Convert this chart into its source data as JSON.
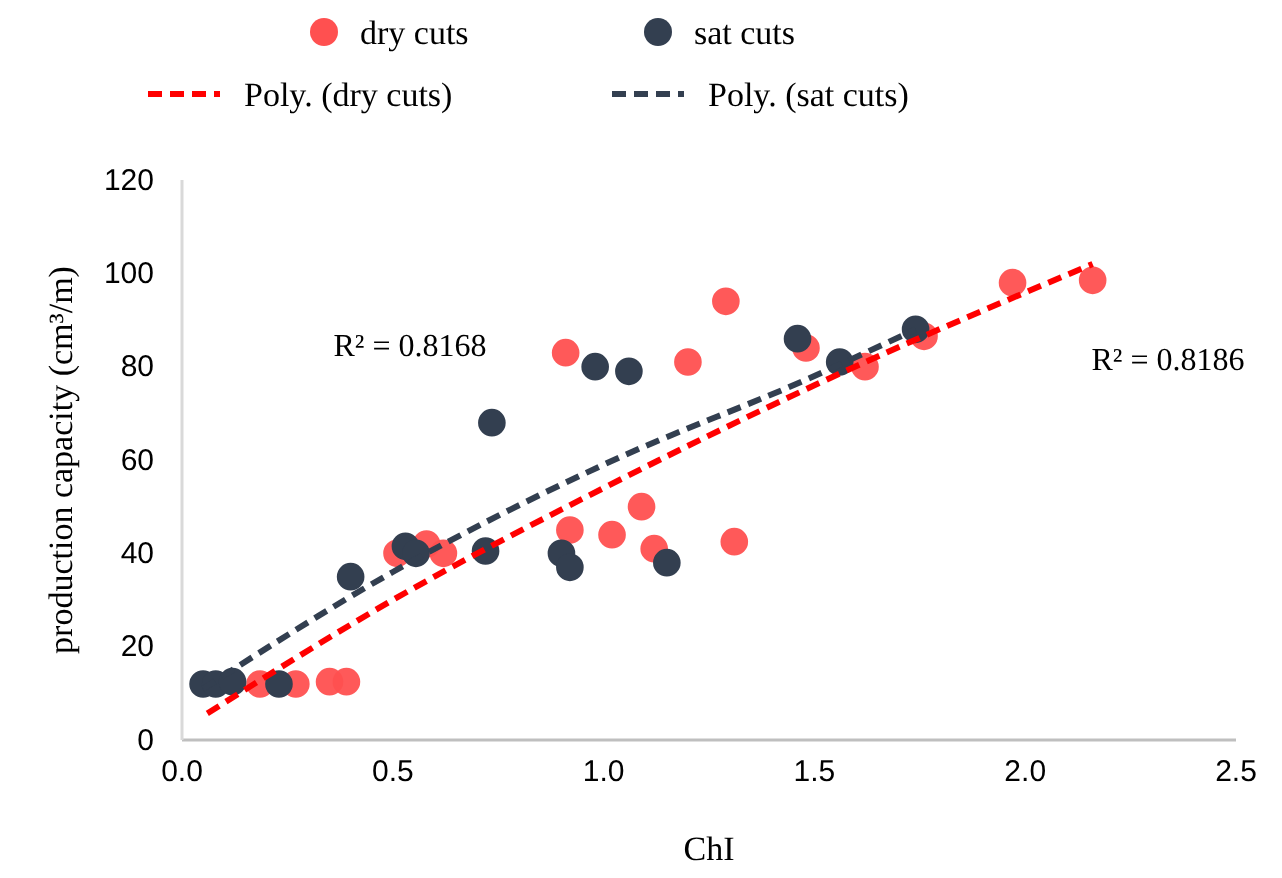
{
  "chart_data": {
    "type": "scatter",
    "xlabel": "ChI",
    "ylabel": "production capacity (cm³/m)",
    "xlim": [
      0,
      2.5
    ],
    "xticks": [
      {
        "value": 0,
        "label": "0.0"
      },
      {
        "value": 0.5,
        "label": "0.5"
      },
      {
        "value": 1,
        "label": "1.0"
      },
      {
        "value": 1.5,
        "label": "1.5"
      },
      {
        "value": 2,
        "label": "2.0"
      },
      {
        "value": 2.5,
        "label": "2.5"
      }
    ],
    "ylim": [
      0,
      120
    ],
    "yticks": [
      0,
      20,
      40,
      60,
      80,
      100,
      120
    ],
    "grid": false,
    "legend": "top",
    "marker": "circle",
    "annotations": [
      "R² = 0.8168",
      "R² = 0.8186"
    ],
    "series": [
      {
        "name": "dry cuts",
        "color": "#ff5050",
        "x": [
          0.185,
          0.27,
          0.35,
          0.39,
          0.51,
          0.58,
          0.62,
          0.91,
          0.92,
          1.02,
          1.09,
          1.12,
          1.2,
          1.29,
          1.31,
          1.48,
          1.62,
          1.76,
          1.97,
          2.16
        ],
        "values": [
          12,
          12,
          12.5,
          12.5,
          40,
          42,
          40,
          83,
          45,
          44,
          50,
          41,
          81,
          94,
          42.5,
          84,
          80,
          86.5,
          98,
          98.5
        ]
      },
      {
        "name": "sat cuts",
        "color": "#333f50",
        "x": [
          0.05,
          0.08,
          0.12,
          0.23,
          0.4,
          0.53,
          0.555,
          0.72,
          0.735,
          0.9,
          0.92,
          0.98,
          1.06,
          1.15,
          1.46,
          1.56,
          1.74
        ],
        "values": [
          12,
          12,
          12.5,
          12,
          35,
          41.5,
          40,
          40.5,
          68,
          40,
          37,
          80,
          79,
          38,
          86,
          81,
          88
        ]
      },
      {
        "name": "Poly. (dry cuts)",
        "type": "line",
        "line_style": "dashed",
        "marker": "none",
        "color": "#ff0000",
        "x": [
          0.06,
          0.5,
          1.0,
          1.5,
          2.16
        ],
        "values": [
          5.7,
          30,
          54,
          76,
          102
        ]
      },
      {
        "name": "Poly. (sat cuts)",
        "type": "line",
        "line_style": "dashed",
        "marker": "none",
        "color": "#333f50",
        "x": [
          0.05,
          0.5,
          1.0,
          1.5,
          1.74
        ],
        "values": [
          11,
          36,
          59,
          78,
          88
        ]
      }
    ]
  }
}
